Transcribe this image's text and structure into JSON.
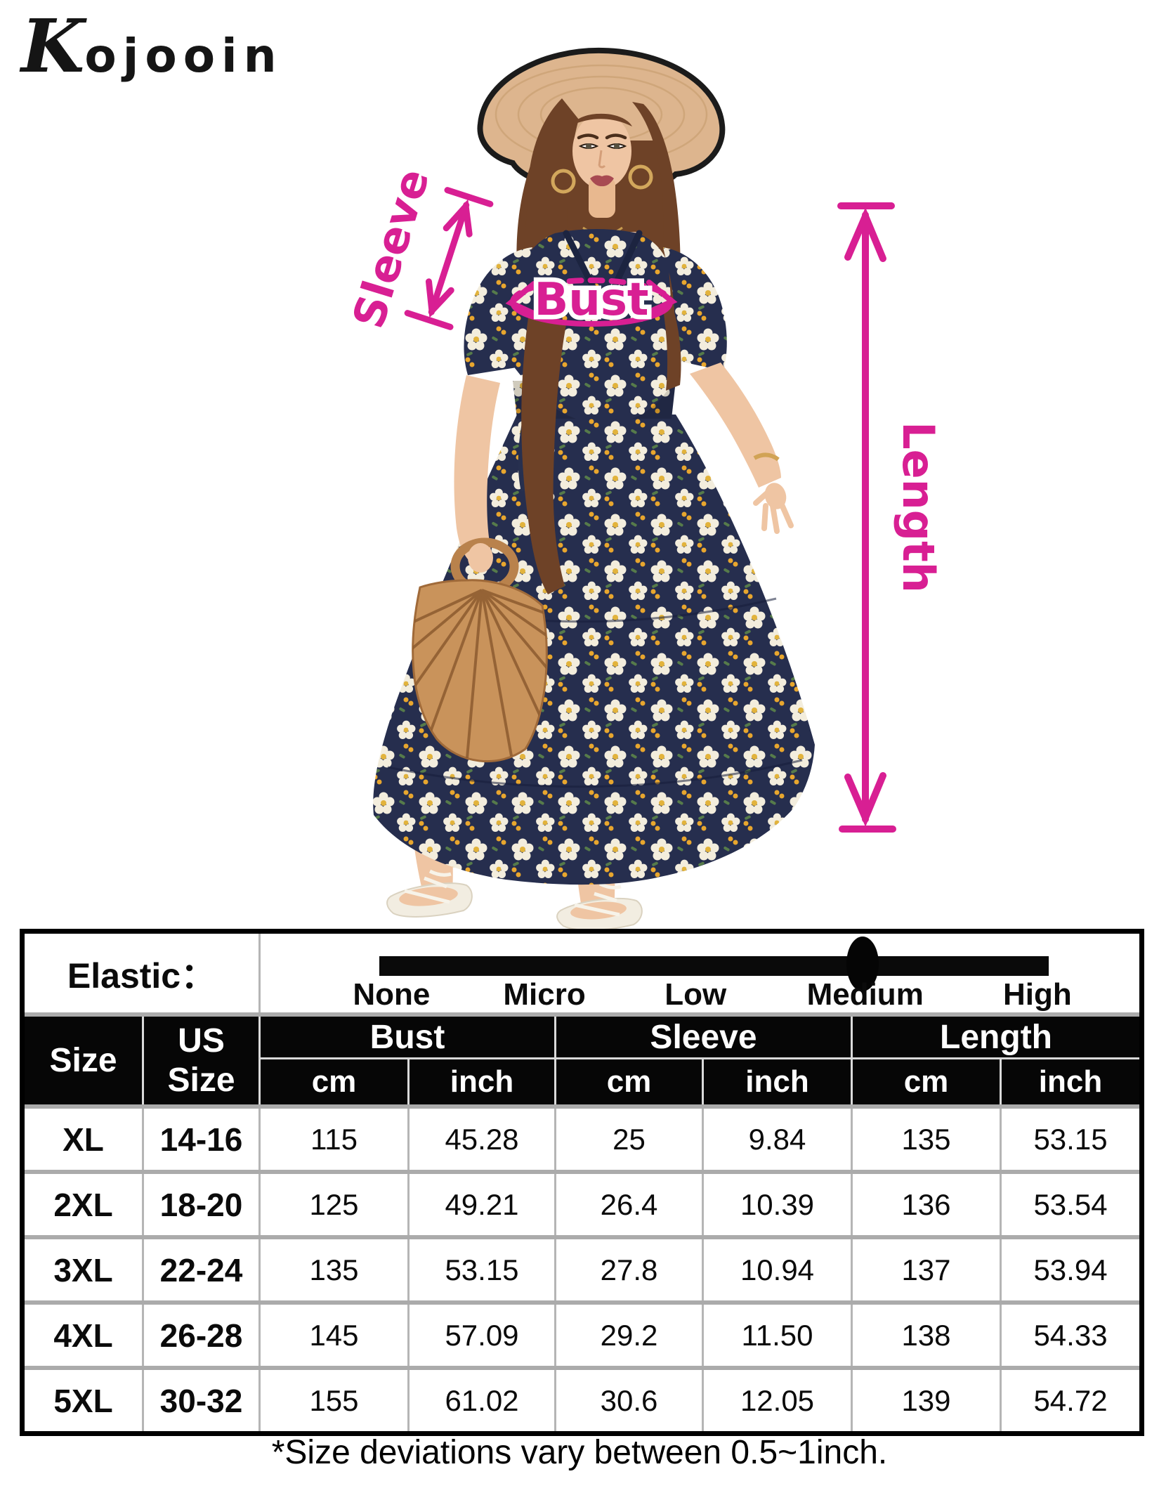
{
  "colors": {
    "accent": "#D81F93",
    "dress": "#262E4E",
    "flower": "#F3EDDD",
    "hat": "#DDB58E",
    "hatedge": "#1B1B1B",
    "skin": "#EFC5A3",
    "hair": "#6E4227",
    "bag": "#C9935B",
    "grid": "#B5B5B5"
  },
  "logo": {
    "first_letter": "K",
    "rest": "ojooin"
  },
  "annotations": {
    "sleeve_label": "Sleeve",
    "bust_label": "Bust",
    "length_label": "Length"
  },
  "elastic": {
    "label": "Elastic：",
    "options": [
      "None",
      "Micro",
      "Low",
      "Medium",
      "High"
    ],
    "selected": "Medium"
  },
  "table": {
    "size_header": "Size",
    "us_size_header": "US Size",
    "groups": [
      {
        "label": "Bust"
      },
      {
        "label": "Sleeve"
      },
      {
        "label": "Length"
      }
    ],
    "unit_headers": [
      "cm",
      "inch",
      "cm",
      "inch",
      "cm",
      "inch"
    ],
    "rows": [
      {
        "size": "XL",
        "us_size": "14-16",
        "values": [
          "115",
          "45.28",
          "25",
          "9.84",
          "135",
          "53.15"
        ]
      },
      {
        "size": "2XL",
        "us_size": "18-20",
        "values": [
          "125",
          "49.21",
          "26.4",
          "10.39",
          "136",
          "53.54"
        ]
      },
      {
        "size": "3XL",
        "us_size": "22-24",
        "values": [
          "135",
          "53.15",
          "27.8",
          "10.94",
          "137",
          "53.94"
        ]
      },
      {
        "size": "4XL",
        "us_size": "26-28",
        "values": [
          "145",
          "57.09",
          "29.2",
          "11.50",
          "138",
          "54.33"
        ]
      },
      {
        "size": "5XL",
        "us_size": "30-32",
        "values": [
          "155",
          "61.02",
          "30.6",
          "12.05",
          "139",
          "54.72"
        ]
      }
    ]
  },
  "footnote": "*Size deviations vary between 0.5~1inch."
}
